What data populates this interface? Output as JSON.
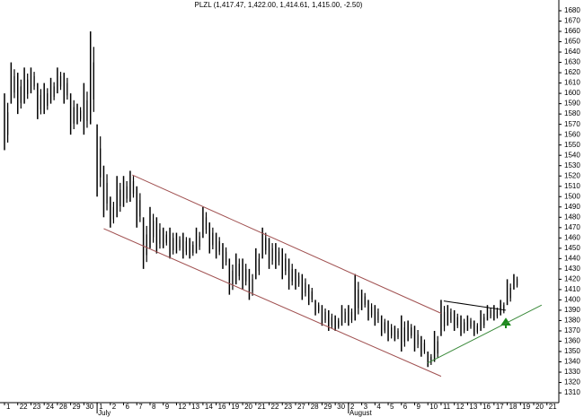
{
  "chart_data": {
    "type": "ohlc",
    "title": "PLZL (1,417.47, 1,422.00, 1,414.61, 1,415.00, -2.50)",
    "color": "#000000",
    "x": [
      0,
      0.5,
      1,
      1.5,
      2,
      2.5,
      3,
      3.5,
      4,
      4.5,
      5,
      5.5,
      6,
      6.5,
      7,
      7.5,
      8,
      8.5,
      9,
      9.5,
      10,
      10.5,
      11,
      11.5,
      12,
      12.5,
      13,
      13.5,
      14,
      14.5,
      15,
      15.5,
      16,
      16.5,
      17,
      17.5,
      18,
      18.5,
      19,
      19.5,
      20,
      20.5,
      21,
      21.5,
      22,
      22.5,
      23,
      23.5,
      24,
      24.5,
      25,
      25.5,
      26,
      26.5,
      27,
      27.5,
      28,
      28.5,
      29,
      29.5,
      30,
      30.5,
      31,
      31.5,
      32,
      32.5,
      33,
      33.5,
      34,
      34.5,
      35,
      35.5,
      36,
      36.5,
      37,
      37.5,
      38,
      38.5
    ],
    "high": [
      1600,
      1630,
      1620,
      1625,
      1625,
      1610,
      1610,
      1615,
      1625,
      1620,
      1600,
      1590,
      1610,
      1660,
      1570,
      1530,
      1500,
      1520,
      1520,
      1525,
      1510,
      1480,
      1490,
      1480,
      1470,
      1470,
      1465,
      1465,
      1460,
      1470,
      1490,
      1475,
      1465,
      1455,
      1440,
      1445,
      1440,
      1430,
      1450,
      1470,
      1460,
      1455,
      1450,
      1440,
      1430,
      1425,
      1415,
      1400,
      1395,
      1390,
      1385,
      1395,
      1395,
      1425,
      1410,
      1400,
      1395,
      1385,
      1380,
      1375,
      1385,
      1380,
      1375,
      1365,
      1350,
      1370,
      1400,
      1395,
      1390,
      1385,
      1385,
      1380,
      1390,
      1395,
      1395,
      1400,
      1420,
      1425
    ],
    "low": [
      1545,
      1590,
      1580,
      1590,
      1600,
      1575,
      1580,
      1590,
      1600,
      1590,
      1560,
      1570,
      1560,
      1570,
      1500,
      1480,
      1470,
      1480,
      1490,
      1495,
      1470,
      1430,
      1450,
      1445,
      1450,
      1440,
      1445,
      1440,
      1440,
      1445,
      1460,
      1445,
      1440,
      1430,
      1405,
      1415,
      1410,
      1400,
      1420,
      1440,
      1430,
      1430,
      1420,
      1410,
      1410,
      1400,
      1395,
      1385,
      1375,
      1370,
      1370,
      1375,
      1375,
      1380,
      1390,
      1380,
      1375,
      1365,
      1360,
      1360,
      1350,
      1360,
      1350,
      1345,
      1335,
      1340,
      1365,
      1375,
      1370,
      1365,
      1370,
      1365,
      1370,
      1380,
      1380,
      1385,
      1395,
      1410
    ],
    "categories": [
      "1",
      "22",
      "23",
      "24",
      "28",
      "29",
      "30",
      "1",
      "2",
      "6",
      "7",
      "8",
      "9",
      "12",
      "13",
      "14",
      "16",
      "19",
      "20",
      "21",
      "22",
      "23",
      "27",
      "28",
      "29",
      "30",
      "2",
      "3",
      "4",
      "5",
      "6",
      "9",
      "10",
      "11",
      "12",
      "13",
      "16",
      "17",
      "18",
      "19",
      "20",
      "21"
    ],
    "months": [
      {
        "index": 7,
        "label": "July"
      },
      {
        "index": 26,
        "label": "August"
      }
    ],
    "trendlines": [
      {
        "color": "#a05050",
        "x": [
          9.66,
          33
        ],
        "y": [
          1521,
          1387
        ]
      },
      {
        "color": "#a05050",
        "x": [
          7.5,
          33
        ],
        "y": [
          1469,
          1326
        ]
      },
      {
        "color": "#3a8a3a",
        "x": [
          32,
          40.6
        ],
        "y": [
          1339,
          1395
        ]
      },
      {
        "color": "#000000",
        "x": [
          33.2,
          37.9
        ],
        "y": [
          1399,
          1390
        ]
      }
    ],
    "xlim": [
      -0.34,
      41.9
    ],
    "ylim": [
      1300.5,
      1690.4
    ],
    "yticks": [
      1310,
      1320,
      1330,
      1340,
      1350,
      1360,
      1370,
      1380,
      1390,
      1400,
      1410,
      1420,
      1430,
      1440,
      1450,
      1460,
      1470,
      1480,
      1490,
      1500,
      1510,
      1520,
      1530,
      1540,
      1550,
      1560,
      1570,
      1580,
      1590,
      1600,
      1610,
      1620,
      1630,
      1640,
      1650,
      1660,
      1670,
      1680
    ]
  }
}
